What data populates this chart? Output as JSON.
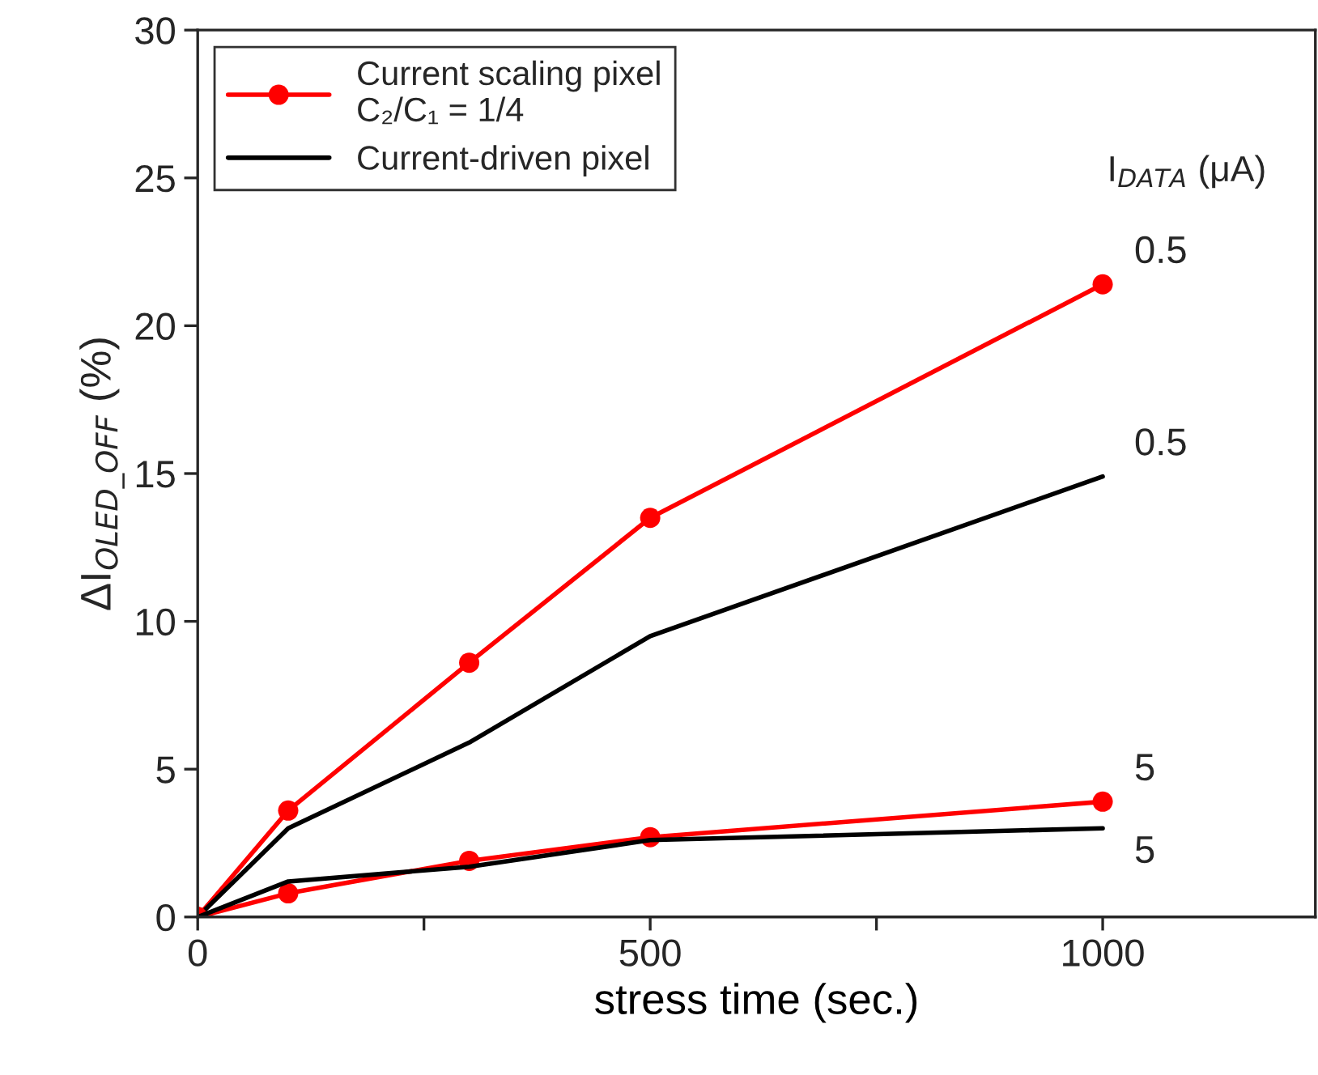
{
  "chart_data": {
    "type": "line",
    "xlabel": "stress time (sec.)",
    "ylabel": "ΔI$_{OLED_OFF}$ (%)",
    "x": [
      0,
      100,
      300,
      500,
      1000
    ],
    "series": [
      {
        "name": "Current scaling pixel\nC₂/C₁ = 1/4",
        "color": "#ff0000",
        "values": [
          0,
          3.6,
          8.6,
          13.5,
          21.4
        ],
        "marker": "circle"
      },
      {
        "name": "Current-driven pixel",
        "color": "#000000",
        "values": [
          0,
          3.0,
          5.9,
          9.5,
          14.9
        ],
        "marker": "none"
      },
      {
        "color": "#ff0000",
        "values": [
          0,
          0.8,
          1.9,
          2.7,
          3.9
        ],
        "marker": "circle"
      },
      {
        "color": "#000000",
        "values": [
          0,
          1.2,
          1.7,
          2.6,
          3.0
        ],
        "marker": "none"
      }
    ],
    "xlim": [
      0,
      1235
    ],
    "xticks": [
      0,
      {
        "value": 250,
        "label": null
      },
      500,
      {
        "value": 750,
        "label": null
      },
      1000
    ],
    "ylim": [
      0,
      30
    ],
    "yticks": [
      0,
      5,
      10,
      15,
      20,
      25,
      30
    ],
    "annotations": [
      "0.5",
      "0.5",
      "5",
      "5",
      "I$_{DATA}$ (μA)"
    ],
    "legend": "top left",
    "grid": false,
    "line_style": "solid"
  }
}
